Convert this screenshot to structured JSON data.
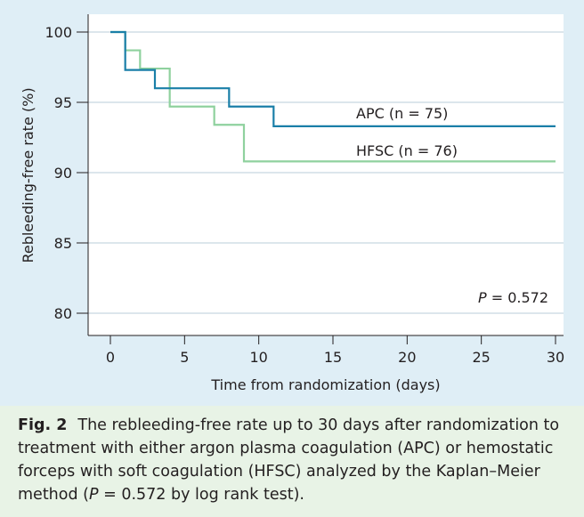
{
  "chart_data": {
    "type": "line",
    "xlabel": "Time from randomization (days)",
    "ylabel": "Rebleeding-free rate (%)",
    "xlim": [
      0,
      30
    ],
    "ylim": [
      78.5,
      101
    ],
    "x_ticks": [
      0,
      5,
      10,
      15,
      20,
      25,
      30
    ],
    "y_ticks": [
      80,
      85,
      90,
      95,
      100
    ],
    "grid": "horizontal",
    "step": true,
    "series": [
      {
        "name": "APC (n = 75)",
        "color": "#1a7fa8",
        "x": [
          0,
          1,
          3,
          8,
          11,
          30
        ],
        "y": [
          100,
          97.3,
          96.0,
          94.7,
          93.3,
          93.3
        ]
      },
      {
        "name": "HFSC (n = 76)",
        "color": "#8fd19e",
        "x": [
          0,
          1,
          2,
          4,
          7,
          9,
          30
        ],
        "y": [
          100,
          98.7,
          97.4,
          94.7,
          93.4,
          90.8,
          90.8
        ]
      }
    ],
    "annotation": {
      "prefix": "P",
      "text": " = 0.572"
    }
  },
  "caption": {
    "label": "Fig. 2",
    "part1": "The rebleeding-free rate up to 30 days after randomization to treatment with either argon plasma coagulation (APC) or hemostatic forceps with soft coagulation (HFSC) analyzed by the Kaplan–Meier method (",
    "p_symbol": "P",
    "part2": " = 0.572 by log rank test)."
  }
}
